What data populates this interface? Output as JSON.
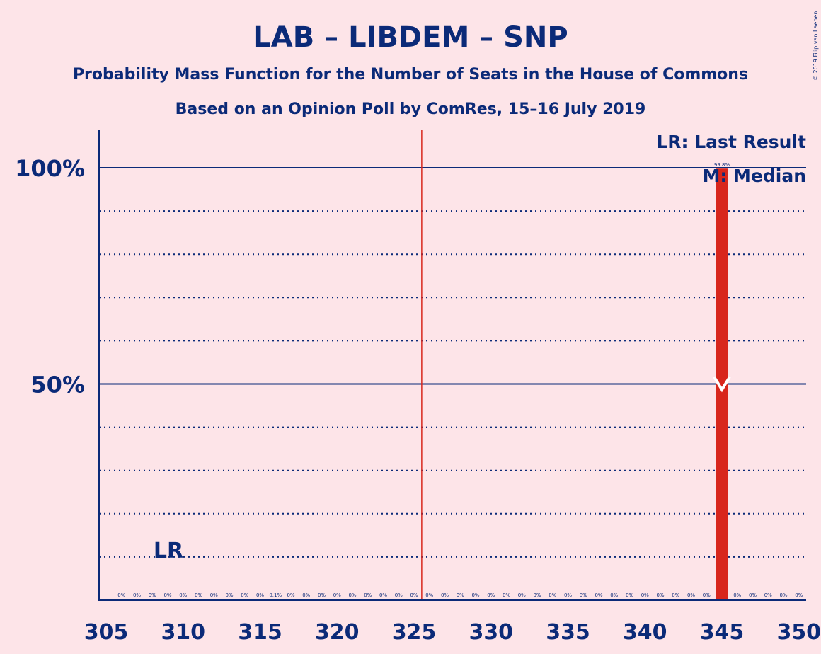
{
  "copyright": "© 2019 Filip van Laenen",
  "chart_data": {
    "type": "bar",
    "title": "LAB – LIBDEM – SNP",
    "subtitle": "Probability Mass Function for the Number of Seats in the House of Commons",
    "subtitle2": "Based on an Opinion Poll by ComRes, 15–16 July 2019",
    "x_ticks": [
      "305",
      "310",
      "315",
      "320",
      "325",
      "330",
      "335",
      "340",
      "345",
      "350"
    ],
    "y_ticks": [
      "50%",
      "100%"
    ],
    "xlim": [
      305,
      350
    ],
    "ylim": [
      0,
      109
    ],
    "grid_dotted_percent": [
      10,
      20,
      30,
      40,
      60,
      70,
      80,
      90
    ],
    "grid_solid_percent": [
      50,
      100
    ],
    "majority_line_x": 325.5,
    "last_result": {
      "x": 309,
      "label": "LR"
    },
    "median": {
      "x": 345,
      "y": 50
    },
    "legend": [
      "LR: Last Result",
      "M: Median"
    ],
    "legend_position": "top-right",
    "bar_color": "#d8261c",
    "line_color": "#0b2a78",
    "majority_line_color": "#d8261c",
    "bars": [
      {
        "x": 306,
        "value": 0,
        "label": "0%"
      },
      {
        "x": 307,
        "value": 0,
        "label": "0%"
      },
      {
        "x": 308,
        "value": 0,
        "label": "0%"
      },
      {
        "x": 309,
        "value": 0,
        "label": "0%"
      },
      {
        "x": 310,
        "value": 0,
        "label": "0%"
      },
      {
        "x": 311,
        "value": 0,
        "label": "0%"
      },
      {
        "x": 312,
        "value": 0,
        "label": "0%"
      },
      {
        "x": 313,
        "value": 0,
        "label": "0%"
      },
      {
        "x": 314,
        "value": 0,
        "label": "0%"
      },
      {
        "x": 315,
        "value": 0,
        "label": "0%"
      },
      {
        "x": 316,
        "value": 0.1,
        "label": "0.1%"
      },
      {
        "x": 317,
        "value": 0,
        "label": "0%"
      },
      {
        "x": 318,
        "value": 0,
        "label": "0%"
      },
      {
        "x": 319,
        "value": 0,
        "label": "0%"
      },
      {
        "x": 320,
        "value": 0,
        "label": "0%"
      },
      {
        "x": 321,
        "value": 0,
        "label": "0%"
      },
      {
        "x": 322,
        "value": 0,
        "label": "0%"
      },
      {
        "x": 323,
        "value": 0,
        "label": "0%"
      },
      {
        "x": 324,
        "value": 0,
        "label": "0%"
      },
      {
        "x": 325,
        "value": 0,
        "label": "0%"
      },
      {
        "x": 326,
        "value": 0,
        "label": "0%"
      },
      {
        "x": 327,
        "value": 0,
        "label": "0%"
      },
      {
        "x": 328,
        "value": 0,
        "label": "0%"
      },
      {
        "x": 329,
        "value": 0,
        "label": "0%"
      },
      {
        "x": 330,
        "value": 0,
        "label": "0%"
      },
      {
        "x": 331,
        "value": 0,
        "label": "0%"
      },
      {
        "x": 332,
        "value": 0,
        "label": "0%"
      },
      {
        "x": 333,
        "value": 0,
        "label": "0%"
      },
      {
        "x": 334,
        "value": 0,
        "label": "0%"
      },
      {
        "x": 335,
        "value": 0,
        "label": "0%"
      },
      {
        "x": 336,
        "value": 0,
        "label": "0%"
      },
      {
        "x": 337,
        "value": 0,
        "label": "0%"
      },
      {
        "x": 338,
        "value": 0,
        "label": "0%"
      },
      {
        "x": 339,
        "value": 0,
        "label": "0%"
      },
      {
        "x": 340,
        "value": 0,
        "label": "0%"
      },
      {
        "x": 341,
        "value": 0,
        "label": "0%"
      },
      {
        "x": 342,
        "value": 0,
        "label": "0%"
      },
      {
        "x": 343,
        "value": 0,
        "label": "0%"
      },
      {
        "x": 344,
        "value": 0,
        "label": "0%"
      },
      {
        "x": 345,
        "value": 99.8,
        "label": "99.8%"
      },
      {
        "x": 346,
        "value": 0,
        "label": "0%"
      },
      {
        "x": 347,
        "value": 0,
        "label": "0%"
      },
      {
        "x": 348,
        "value": 0,
        "label": "0%"
      },
      {
        "x": 349,
        "value": 0,
        "label": "0%"
      },
      {
        "x": 350,
        "value": 0,
        "label": "0%"
      }
    ]
  }
}
